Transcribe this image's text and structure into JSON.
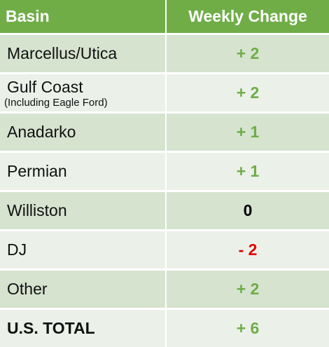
{
  "table": {
    "header": {
      "basin": "Basin",
      "change": "Weekly Change"
    },
    "rows": [
      {
        "basin": "Marcellus/Utica",
        "change": "+ 2"
      },
      {
        "basin": "Gulf Coast",
        "note": "(Including Eagle Ford)",
        "change": "+ 2"
      },
      {
        "basin": "Anadarko",
        "change": "+ 1"
      },
      {
        "basin": "Permian",
        "change": "+ 1"
      },
      {
        "basin": "Williston",
        "change": "0"
      },
      {
        "basin": "DJ",
        "change": "- 2"
      },
      {
        "basin": "Other",
        "change": "+ 2"
      },
      {
        "basin": "U.S. TOTAL",
        "change": "+ 6"
      }
    ]
  }
}
